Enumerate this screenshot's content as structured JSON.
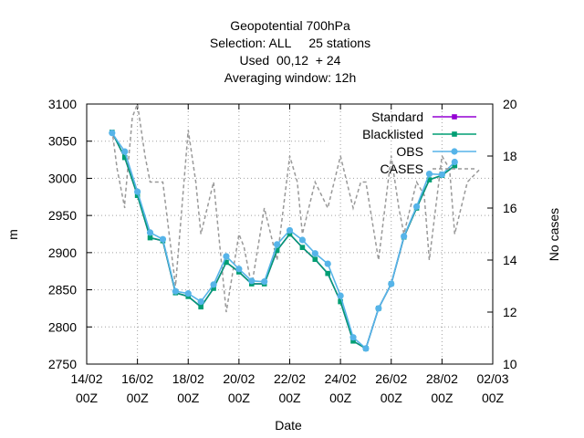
{
  "chart_data": {
    "type": "line",
    "title_lines": [
      "Geopotential 700hPa",
      "Selection: ALL     25 stations",
      "Used  00,12  + 24",
      "Averaging window: 12h"
    ],
    "xlabel": "Date",
    "ylabel": "m",
    "y2label": "No cases",
    "xlim": [
      0,
      16
    ],
    "ylim": [
      2750,
      3100
    ],
    "y2lim": [
      10,
      20
    ],
    "xticks": [
      {
        "day": 0,
        "line1": "14/02",
        "line2": "00Z"
      },
      {
        "day": 2,
        "line1": "16/02",
        "line2": "00Z"
      },
      {
        "day": 4,
        "line1": "18/02",
        "line2": "00Z"
      },
      {
        "day": 6,
        "line1": "20/02",
        "line2": "00Z"
      },
      {
        "day": 8,
        "line1": "22/02",
        "line2": "00Z"
      },
      {
        "day": 10,
        "line1": "24/02",
        "line2": "00Z"
      },
      {
        "day": 12,
        "line1": "26/02",
        "line2": "00Z"
      },
      {
        "day": 14,
        "line1": "28/02",
        "line2": "00Z"
      },
      {
        "day": 16,
        "line1": "02/03",
        "line2": "00Z"
      }
    ],
    "yticks": [
      2750,
      2800,
      2850,
      2900,
      2950,
      3000,
      3050,
      3100
    ],
    "y2ticks": [
      10,
      12,
      14,
      16,
      18,
      20
    ],
    "grid": true,
    "legend_position": "top-right",
    "x": [
      1,
      1.5,
      2,
      2.5,
      3,
      3.5,
      4,
      4.5,
      5,
      5.5,
      6,
      6.5,
      7,
      7.5,
      8,
      8.5,
      9,
      9.5,
      10,
      10.5,
      11,
      11.5,
      12,
      12.5,
      13,
      13.5,
      14,
      14.5,
      15
    ],
    "series": [
      {
        "name": "Standard",
        "color": "#9400d3",
        "axis": "left",
        "values": [
          3062,
          3028,
          2977,
          2920,
          2916,
          2846,
          2841,
          2827,
          2852,
          2887,
          2874,
          2858,
          2858,
          2903,
          2925,
          2907,
          2891,
          2872,
          2834,
          2781,
          2771,
          2825,
          2858,
          2921,
          2960,
          2998,
          3004,
          3017,
          null
        ]
      },
      {
        "name": "Blacklisted",
        "color": "#009e73",
        "axis": "left",
        "values": [
          3062,
          3028,
          2977,
          2920,
          2916,
          2846,
          2841,
          2827,
          2852,
          2887,
          2874,
          2858,
          2858,
          2903,
          2925,
          2907,
          2891,
          2872,
          2834,
          2781,
          2771,
          2825,
          2858,
          2921,
          2960,
          2998,
          3004,
          3017,
          null
        ]
      },
      {
        "name": "OBS",
        "color": "#56b4e9",
        "axis": "left",
        "values": [
          3061,
          3036,
          2982,
          2927,
          2918,
          2848,
          2845,
          2834,
          2857,
          2895,
          2878,
          2862,
          2861,
          2911,
          2930,
          2917,
          2899,
          2885,
          2842,
          2786,
          2771,
          2825,
          2858,
          2922,
          2962,
          3006,
          3005,
          3022,
          null
        ]
      },
      {
        "name": "CASES",
        "color": "#999999",
        "axis": "right",
        "dash": true,
        "values": [
          19,
          16,
          20,
          17,
          17,
          13,
          19,
          15,
          17,
          12,
          15,
          13,
          16,
          14,
          18,
          15,
          17,
          16,
          18,
          16,
          17,
          14,
          18,
          15,
          17,
          14,
          18,
          15,
          17
        ]
      }
    ],
    "cases_extra": [
      {
        "x": 1.2,
        "y": 17.5
      },
      {
        "x": 1.5,
        "y": 16.2
      },
      {
        "x": 1.8,
        "y": 19.5
      },
      {
        "x": 2.3,
        "y": 18.0
      },
      {
        "x": 4.3,
        "y": 17.0
      },
      {
        "x": 6.2,
        "y": 14.5
      },
      {
        "x": 8.3,
        "y": 17.0
      },
      {
        "x": 10.8,
        "y": 17.0
      },
      {
        "x": 12.3,
        "y": 16.0
      },
      {
        "x": 13.3,
        "y": 16.5
      },
      {
        "x": 14.3,
        "y": 17.5
      },
      {
        "x": 15.5,
        "y": 17.5
      }
    ]
  }
}
